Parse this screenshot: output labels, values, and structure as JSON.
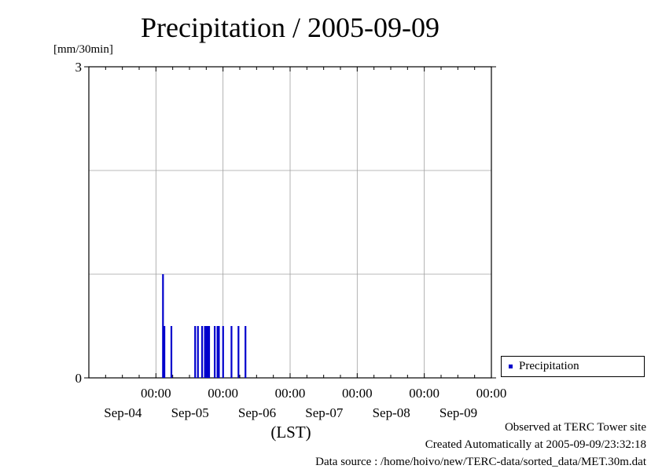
{
  "chart_data": {
    "type": "bar",
    "title": "Precipitation / 2005-09-09",
    "ylabel": "[mm/30min]",
    "xlabel": "(LST)",
    "ylim": [
      0,
      3
    ],
    "yticks_labeled": [
      "0",
      "3"
    ],
    "y_gridlines": [
      1,
      2
    ],
    "x_ticks": [
      {
        "time": "00:00",
        "date": "Sep-04"
      },
      {
        "time": "00:00",
        "date": "Sep-05"
      },
      {
        "time": "00:00",
        "date": "Sep-06"
      },
      {
        "time": "00:00",
        "date": "Sep-07"
      },
      {
        "time": "00:00",
        "date": "Sep-08"
      },
      {
        "time": "00:00",
        "date": "Sep-09"
      }
    ],
    "xlim": [
      "2005-09-04T00:00",
      "2005-09-10T00:00"
    ],
    "grid": true,
    "legend_position": "bottom-right, outside plot",
    "series": [
      {
        "name": "Precipitation",
        "color": "#0000cc",
        "x": [
          "2005-09-05T02:30",
          "2005-09-05T03:00",
          "2005-09-05T05:30",
          "2005-09-05T14:00",
          "2005-09-05T15:00",
          "2005-09-05T16:30",
          "2005-09-05T17:30",
          "2005-09-05T18:00",
          "2005-09-05T18:30",
          "2005-09-05T19:00",
          "2005-09-05T21:00",
          "2005-09-05T22:00",
          "2005-09-05T22:30",
          "2005-09-06T00:00",
          "2005-09-06T03:00",
          "2005-09-06T05:30",
          "2005-09-06T08:00"
        ],
        "values": [
          1.0,
          0.5,
          0.5,
          0.5,
          0.5,
          0.5,
          0.5,
          0.5,
          0.5,
          0.5,
          0.5,
          0.5,
          0.5,
          0.5,
          0.5,
          0.5,
          0.5
        ]
      }
    ]
  },
  "legend": {
    "label": "Precipitation"
  },
  "footer": {
    "observed": "Observed at TERC Tower site",
    "created": "Created Automatically at 2005-09-09/23:32:18",
    "source": "Data source : /home/hoivo/new/TERC-data/sorted_data/MET.30m.dat"
  }
}
